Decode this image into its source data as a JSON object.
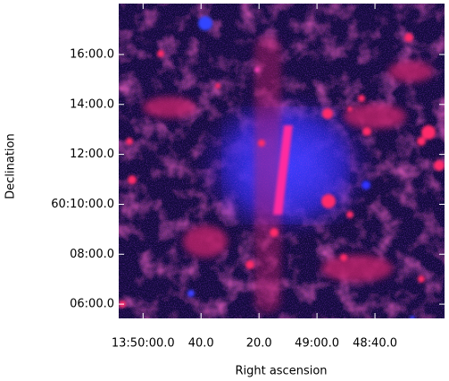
{
  "chart_data": {
    "type": "image",
    "x_label": "Right ascension",
    "y_label": "Declination",
    "xlim": [
      49808.4,
      49696
    ],
    "xticks": [
      {
        "value": 49800,
        "label": "13:50:00.0"
      },
      {
        "value": 49780,
        "label": "40.0"
      },
      {
        "value": 49760,
        "label": "20.0"
      },
      {
        "value": 49740,
        "label": "49:00.0"
      },
      {
        "value": 49720,
        "label": "48:40.0"
      }
    ],
    "ylim": [
      5.43,
      18.04
    ],
    "yticks": [
      {
        "value": 16,
        "label": "16:00.0"
      },
      {
        "value": 14,
        "label": "14:00.0"
      },
      {
        "value": 12,
        "label": "12:00.0"
      },
      {
        "value": 10,
        "label": "60:10:00.0"
      },
      {
        "value": 8,
        "label": "08:00.0"
      },
      {
        "value": 6,
        "label": "06:00.0"
      }
    ]
  }
}
